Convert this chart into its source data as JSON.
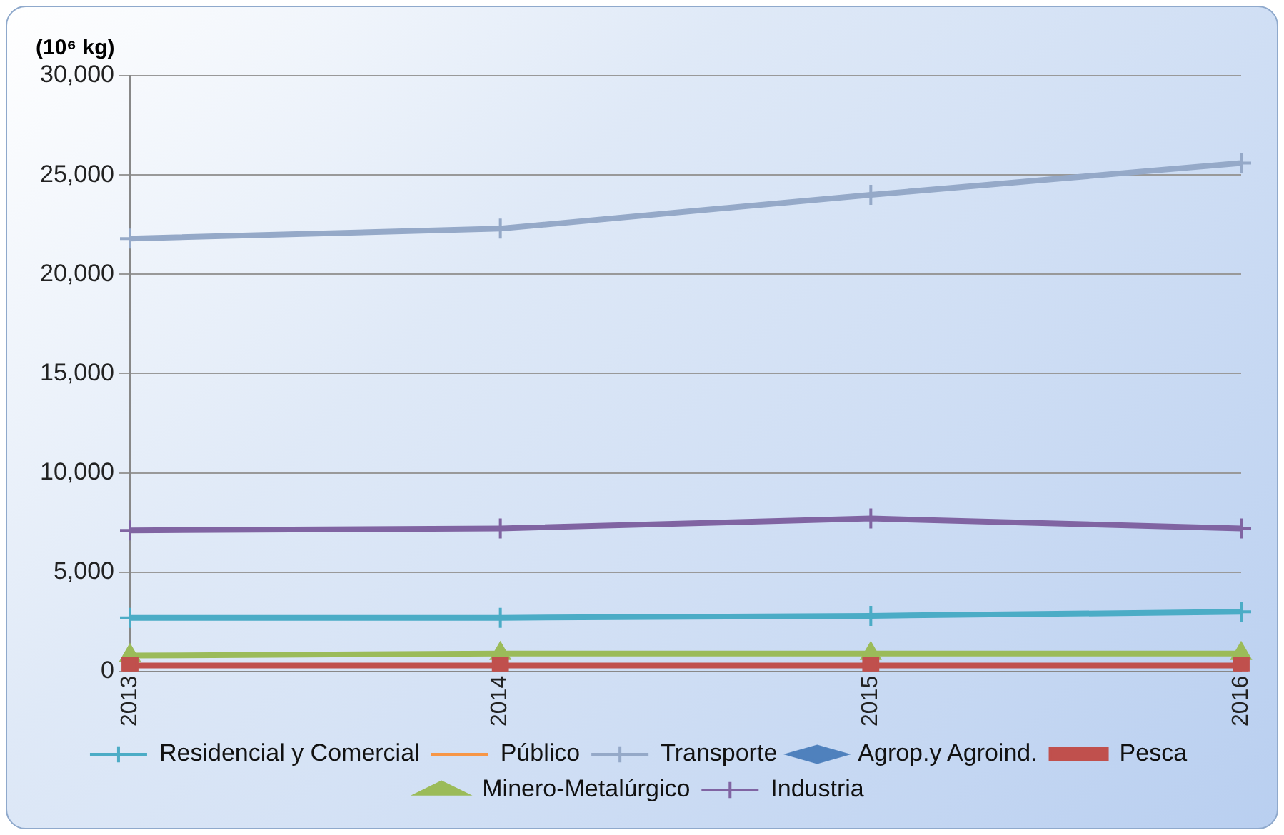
{
  "chart_data": {
    "type": "line",
    "ylabel": "(10⁶ kg)",
    "categories": [
      "2013",
      "2014",
      "2015",
      "2016"
    ],
    "ylim": [
      0,
      30000
    ],
    "yticks": [
      0,
      {
        "value": 5000,
        "label": "5,000"
      },
      {
        "value": 10000,
        "label": "10,000"
      },
      {
        "value": 15000,
        "label": "15,000"
      },
      {
        "value": 20000,
        "label": "20,000"
      },
      {
        "value": 25000,
        "label": "25,000"
      },
      {
        "value": 30000,
        "label": "30,000"
      }
    ],
    "grid": "y",
    "legend": "bottom",
    "series": [
      {
        "name": "Residencial y Comercial",
        "color": "#4bacc6",
        "marker": "cross",
        "values": [
          2700,
          2700,
          2800,
          3000
        ]
      },
      {
        "name": "Público",
        "color": "#f79646",
        "marker": "none",
        "values": [
          null,
          null,
          null,
          null
        ]
      },
      {
        "name": "Transporte",
        "color": "#95a9c8",
        "marker": "cross",
        "values": [
          21800,
          22300,
          24000,
          25600
        ]
      },
      {
        "name": "Agrop.y Agroind.",
        "color": "#4f81bd",
        "marker": "diamond",
        "values": [
          null,
          null,
          null,
          null
        ]
      },
      {
        "name": "Pesca",
        "color": "#c0504d",
        "marker": "square",
        "values": [
          300,
          300,
          300,
          300
        ]
      },
      {
        "name": "Minero-Metalúrgico",
        "color": "#9bbb59",
        "marker": "triangle",
        "values": [
          800,
          900,
          900,
          900
        ]
      },
      {
        "name": "Industria",
        "color": "#8064a2",
        "marker": "cross",
        "values": [
          7100,
          7200,
          7700,
          7200
        ]
      }
    ]
  }
}
